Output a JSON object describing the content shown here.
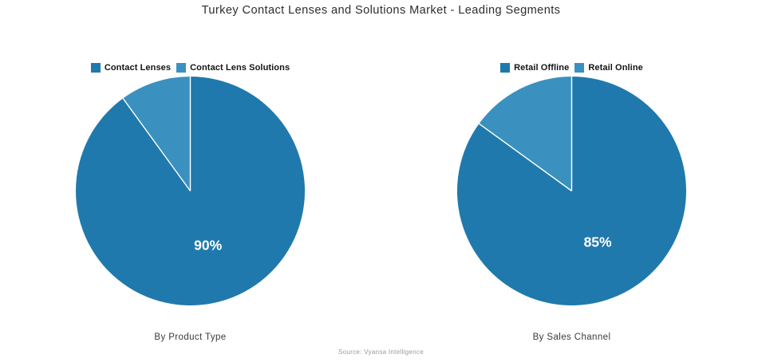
{
  "title": "Turkey Contact Lenses and Solutions Market - Leading Segments",
  "source_note": "Source: Vyansa Intelligence",
  "palette": {
    "primary_blue": "#2079ac",
    "secondary_blue": "#3a91bf",
    "slice_divider": "#ffffff"
  },
  "chart_data": [
    {
      "type": "pie",
      "caption": "By Product Type",
      "labels": [
        "Contact Lenses",
        "Contact Lens Solutions"
      ],
      "values": [
        90,
        10
      ],
      "value_labels": [
        "90%",
        ""
      ],
      "colors": [
        "#2079ac",
        "#3a91bf"
      ],
      "legend_position": "top",
      "start_angle": "12 o'clock",
      "direction": "clockwise",
      "legend": [
        {
          "label": "Contact Lenses",
          "color": "#2079ac"
        },
        {
          "label": "Contact Lens Solutions",
          "color": "#3a91bf"
        }
      ]
    },
    {
      "type": "pie",
      "caption": "By Sales Channel",
      "labels": [
        "Retail Offline",
        "Retail Online"
      ],
      "values": [
        85,
        15
      ],
      "value_labels": [
        "85%",
        ""
      ],
      "colors": [
        "#2079ac",
        "#3a91bf"
      ],
      "legend_position": "top",
      "start_angle": "12 o'clock",
      "direction": "clockwise",
      "legend": [
        {
          "label": "Retail Offline",
          "color": "#2079ac"
        },
        {
          "label": "Retail Online",
          "color": "#3a91bf"
        }
      ]
    }
  ]
}
